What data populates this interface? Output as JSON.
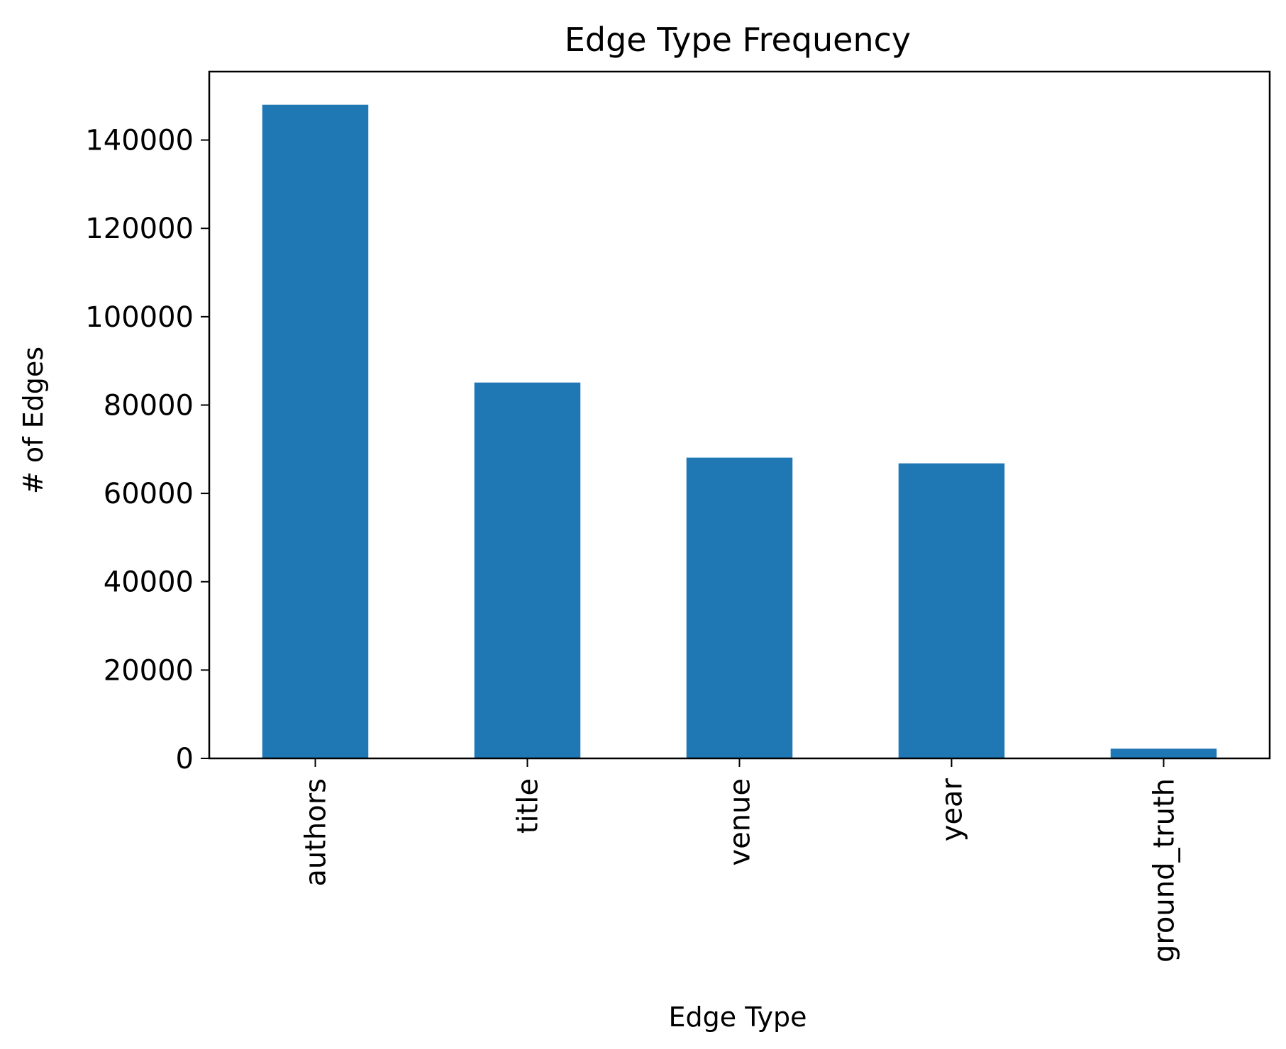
{
  "chart_data": {
    "type": "bar",
    "title": "Edge Type Frequency",
    "xlabel": "Edge Type",
    "ylabel": "# of Edges",
    "categories": [
      "authors",
      "title",
      "venue",
      "year",
      "ground_truth"
    ],
    "values": [
      148000,
      85100,
      68100,
      66800,
      2200
    ],
    "ylim": [
      0,
      155500
    ],
    "yticks": [
      0,
      20000,
      40000,
      60000,
      80000,
      100000,
      120000,
      140000
    ],
    "yticklabels": [
      "0",
      "20000",
      "40000",
      "60000",
      "80000",
      "100000",
      "120000",
      "140000"
    ],
    "bar_color": "#1f77b4",
    "grid": false,
    "legend": "none"
  }
}
